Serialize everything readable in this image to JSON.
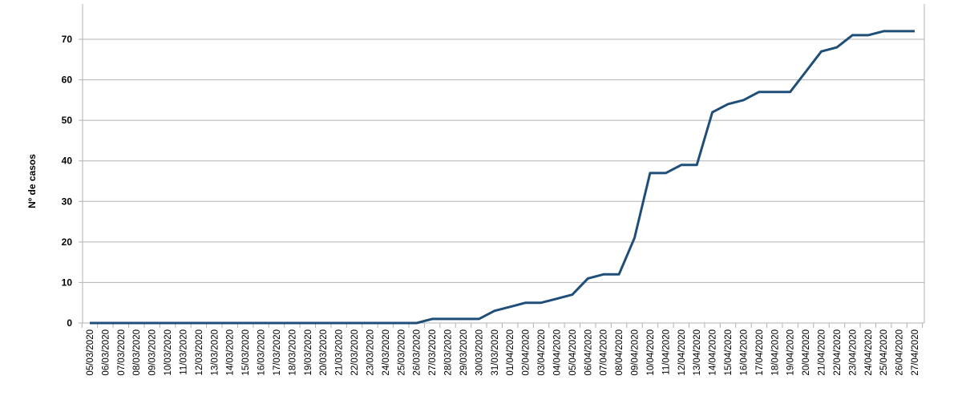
{
  "chart_data": {
    "type": "line",
    "title": "",
    "xlabel": "",
    "ylabel": "Nº de casos",
    "ylim": [
      0,
      70
    ],
    "yticks": [
      0,
      10,
      20,
      30,
      40,
      50,
      60,
      70
    ],
    "grid": true,
    "legend": "none",
    "line_color": "#1f4e79",
    "categories": [
      "05/03/2020",
      "06/03/2020",
      "07/03/2020",
      "08/03/2020",
      "09/03/2020",
      "10/03/2020",
      "11/03/2020",
      "12/03/2020",
      "13/03/2020",
      "14/03/2020",
      "15/03/2020",
      "16/03/2020",
      "17/03/2020",
      "18/03/2020",
      "19/03/2020",
      "20/03/2020",
      "21/03/2020",
      "22/03/2020",
      "23/03/2020",
      "24/03/2020",
      "25/03/2020",
      "26/03/2020",
      "27/03/2020",
      "28/03/2020",
      "29/03/2020",
      "30/03/2020",
      "31/03/2020",
      "01/04/2020",
      "02/04/2020",
      "03/04/2020",
      "04/04/2020",
      "05/04/2020",
      "06/04/2020",
      "07/04/2020",
      "08/04/2020",
      "09/04/2020",
      "10/04/2020",
      "11/04/2020",
      "12/04/2020",
      "13/04/2020",
      "14/04/2020",
      "15/04/2020",
      "16/04/2020",
      "17/04/2020",
      "18/04/2020",
      "19/04/2020",
      "20/04/2020",
      "21/04/2020",
      "22/04/2020",
      "23/04/2020",
      "24/04/2020",
      "25/04/2020",
      "26/04/2020",
      "27/04/2020"
    ],
    "values": [
      0,
      0,
      0,
      0,
      0,
      0,
      0,
      0,
      0,
      0,
      0,
      0,
      0,
      0,
      0,
      0,
      0,
      0,
      0,
      0,
      0,
      0,
      1,
      1,
      1,
      1,
      3,
      4,
      5,
      5,
      6,
      7,
      11,
      12,
      12,
      21,
      37,
      37,
      39,
      39,
      52,
      54,
      55,
      57,
      57,
      57,
      62,
      67,
      68,
      71,
      71,
      72,
      72,
      72
    ]
  }
}
